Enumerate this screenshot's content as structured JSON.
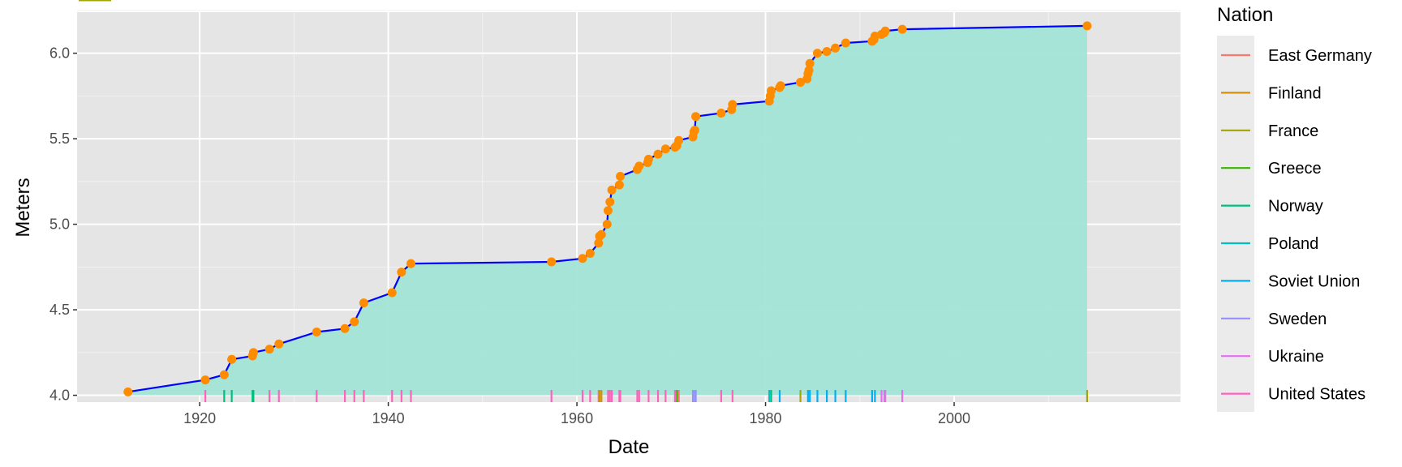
{
  "chart_data": {
    "type": "area",
    "xlabel": "Date",
    "ylabel": "Meters",
    "xlim": [
      1907,
      2024
    ],
    "ylim": [
      3.96,
      6.24
    ],
    "x_ticks": [
      1920,
      1940,
      1960,
      1980,
      2000
    ],
    "y_ticks": [
      "4.0",
      "4.5",
      "5.0",
      "5.5",
      "6.0"
    ],
    "grid": true,
    "line_color": "#0000ff",
    "point_color": "#ff8c00",
    "area_color": "#a3e4d7",
    "records": [
      [
        1912.4,
        4.02
      ],
      [
        1920.6,
        4.09
      ],
      [
        1922.6,
        4.12
      ],
      [
        1923.4,
        4.21
      ],
      [
        1925.6,
        4.23
      ],
      [
        1925.7,
        4.25
      ],
      [
        1927.4,
        4.27
      ],
      [
        1928.4,
        4.3
      ],
      [
        1932.4,
        4.37
      ],
      [
        1935.4,
        4.39
      ],
      [
        1936.4,
        4.43
      ],
      [
        1937.4,
        4.54
      ],
      [
        1940.4,
        4.6
      ],
      [
        1941.4,
        4.72
      ],
      [
        1942.4,
        4.77
      ],
      [
        1957.3,
        4.78
      ],
      [
        1960.6,
        4.8
      ],
      [
        1961.4,
        4.83
      ],
      [
        1962.3,
        4.89
      ],
      [
        1962.4,
        4.93
      ],
      [
        1962.6,
        4.94
      ],
      [
        1963.2,
        5.0
      ],
      [
        1963.3,
        5.08
      ],
      [
        1963.5,
        5.13
      ],
      [
        1963.7,
        5.2
      ],
      [
        1964.5,
        5.23
      ],
      [
        1964.6,
        5.28
      ],
      [
        1966.4,
        5.32
      ],
      [
        1966.6,
        5.34
      ],
      [
        1967.5,
        5.36
      ],
      [
        1967.6,
        5.38
      ],
      [
        1968.6,
        5.41
      ],
      [
        1969.4,
        5.44
      ],
      [
        1970.4,
        5.45
      ],
      [
        1970.6,
        5.46
      ],
      [
        1970.8,
        5.49
      ],
      [
        1972.3,
        5.51
      ],
      [
        1972.4,
        5.54
      ],
      [
        1972.5,
        5.55
      ],
      [
        1972.6,
        5.63
      ],
      [
        1975.3,
        5.65
      ],
      [
        1976.4,
        5.67
      ],
      [
        1976.5,
        5.7
      ],
      [
        1980.4,
        5.72
      ],
      [
        1980.5,
        5.75
      ],
      [
        1980.6,
        5.78
      ],
      [
        1981.5,
        5.8
      ],
      [
        1981.6,
        5.81
      ],
      [
        1983.7,
        5.83
      ],
      [
        1984.4,
        5.85
      ],
      [
        1984.5,
        5.88
      ],
      [
        1984.6,
        5.9
      ],
      [
        1984.7,
        5.94
      ],
      [
        1985.5,
        6.0
      ],
      [
        1986.5,
        6.01
      ],
      [
        1987.4,
        6.03
      ],
      [
        1988.5,
        6.06
      ],
      [
        1991.3,
        6.07
      ],
      [
        1991.5,
        6.08
      ],
      [
        1991.6,
        6.1
      ],
      [
        1992.3,
        6.11
      ],
      [
        1992.6,
        6.12
      ],
      [
        1992.7,
        6.13
      ],
      [
        1994.5,
        6.14
      ],
      [
        2014.1,
        6.16
      ]
    ],
    "rug_x": [
      [
        1920.6,
        "United States"
      ],
      [
        1922.6,
        "Norway"
      ],
      [
        1923.4,
        "Norway"
      ],
      [
        1925.7,
        "Norway"
      ],
      [
        1925.6,
        "Norway"
      ],
      [
        1927.4,
        "United States"
      ],
      [
        1928.4,
        "United States"
      ],
      [
        1932.4,
        "United States"
      ],
      [
        1935.4,
        "United States"
      ],
      [
        1936.4,
        "United States"
      ],
      [
        1937.4,
        "United States"
      ],
      [
        1940.4,
        "United States"
      ],
      [
        1941.4,
        "United States"
      ],
      [
        1942.4,
        "United States"
      ],
      [
        1957.3,
        "United States"
      ],
      [
        1960.6,
        "United States"
      ],
      [
        1961.4,
        "United States"
      ],
      [
        1962.3,
        "United States"
      ],
      [
        1962.4,
        "Finland"
      ],
      [
        1962.6,
        "Finland"
      ],
      [
        1963.3,
        "United States"
      ],
      [
        1963.5,
        "United States"
      ],
      [
        1963.7,
        "United States"
      ],
      [
        1964.5,
        "United States"
      ],
      [
        1964.6,
        "United States"
      ],
      [
        1966.4,
        "United States"
      ],
      [
        1966.6,
        "United States"
      ],
      [
        1967.6,
        "United States"
      ],
      [
        1968.6,
        "United States"
      ],
      [
        1969.4,
        "United States"
      ],
      [
        1970.4,
        "United States"
      ],
      [
        1970.6,
        "Greece"
      ],
      [
        1970.8,
        "East Germany"
      ],
      [
        1972.3,
        "Sweden"
      ],
      [
        1972.5,
        "Sweden"
      ],
      [
        1972.6,
        "Sweden"
      ],
      [
        1975.3,
        "United States"
      ],
      [
        1976.5,
        "United States"
      ],
      [
        1980.4,
        "Poland"
      ],
      [
        1980.6,
        "Norway"
      ],
      [
        1981.5,
        "Soviet Union"
      ],
      [
        1983.7,
        "France"
      ],
      [
        1984.5,
        "Soviet Union"
      ],
      [
        1984.7,
        "Soviet Union"
      ],
      [
        1985.5,
        "Soviet Union"
      ],
      [
        1986.5,
        "Soviet Union"
      ],
      [
        1987.4,
        "Soviet Union"
      ],
      [
        1988.5,
        "Soviet Union"
      ],
      [
        1991.3,
        "Soviet Union"
      ],
      [
        1991.6,
        "Soviet Union"
      ],
      [
        1992.3,
        "Ukraine"
      ],
      [
        1992.6,
        "Ukraine"
      ],
      [
        1992.7,
        "Ukraine"
      ],
      [
        1994.5,
        "Ukraine"
      ],
      [
        2014.1,
        "France"
      ]
    ],
    "rug_y": [
      [
        4.02,
        "United States"
      ],
      [
        4.09,
        "United States"
      ],
      [
        4.12,
        "Norway"
      ],
      [
        4.21,
        "Norway"
      ],
      [
        4.23,
        "Norway"
      ],
      [
        4.25,
        "Norway"
      ],
      [
        4.27,
        "United States"
      ],
      [
        4.3,
        "United States"
      ],
      [
        4.37,
        "United States"
      ],
      [
        4.39,
        "United States"
      ],
      [
        4.43,
        "United States"
      ],
      [
        4.54,
        "United States"
      ],
      [
        4.6,
        "United States"
      ],
      [
        4.72,
        "United States"
      ],
      [
        4.77,
        "United States"
      ],
      [
        4.78,
        "United States"
      ],
      [
        4.8,
        "United States"
      ],
      [
        4.83,
        "United States"
      ],
      [
        4.89,
        "United States"
      ],
      [
        4.93,
        "Finland"
      ],
      [
        4.94,
        "Finland"
      ],
      [
        5.0,
        "United States"
      ],
      [
        5.08,
        "United States"
      ],
      [
        5.13,
        "United States"
      ],
      [
        5.2,
        "United States"
      ],
      [
        5.23,
        "United States"
      ],
      [
        5.28,
        "United States"
      ],
      [
        5.32,
        "United States"
      ],
      [
        5.34,
        "United States"
      ],
      [
        5.36,
        "United States"
      ],
      [
        5.38,
        "United States"
      ],
      [
        5.41,
        "United States"
      ],
      [
        5.44,
        "United States"
      ],
      [
        5.45,
        "United States"
      ],
      [
        5.46,
        "East Germany"
      ],
      [
        5.49,
        "Greece"
      ],
      [
        5.51,
        "Sweden"
      ],
      [
        5.54,
        "Sweden"
      ],
      [
        5.55,
        "Sweden"
      ],
      [
        5.63,
        "United States"
      ],
      [
        5.65,
        "United States"
      ],
      [
        5.67,
        "United States"
      ],
      [
        5.7,
        "United States"
      ],
      [
        5.72,
        "Poland"
      ],
      [
        5.75,
        "Norway"
      ],
      [
        5.78,
        "France"
      ],
      [
        5.8,
        "France"
      ],
      [
        5.81,
        "Soviet Union"
      ],
      [
        5.83,
        "France"
      ],
      [
        5.85,
        "Soviet Union"
      ],
      [
        5.88,
        "Soviet Union"
      ],
      [
        5.9,
        "Soviet Union"
      ],
      [
        5.94,
        "Soviet Union"
      ],
      [
        6.0,
        "Soviet Union"
      ],
      [
        6.01,
        "Soviet Union"
      ],
      [
        6.03,
        "Soviet Union"
      ],
      [
        6.05,
        "Soviet Union"
      ],
      [
        6.06,
        "Soviet Union"
      ],
      [
        6.07,
        "Soviet Union"
      ],
      [
        6.08,
        "Soviet Union"
      ],
      [
        6.09,
        "Soviet Union"
      ],
      [
        6.1,
        "Soviet Union"
      ],
      [
        6.11,
        "Ukraine"
      ],
      [
        6.12,
        "Ukraine"
      ],
      [
        6.13,
        "Ukraine"
      ],
      [
        6.14,
        "Ukraine"
      ],
      [
        6.16,
        "France"
      ]
    ],
    "legend": {
      "title": "Nation",
      "position": "right",
      "entries": [
        {
          "label": "East Germany",
          "color": "#F8766D"
        },
        {
          "label": "Finland",
          "color": "#D89000"
        },
        {
          "label": "France",
          "color": "#A3A500"
        },
        {
          "label": "Greece",
          "color": "#39B600"
        },
        {
          "label": "Norway",
          "color": "#00BF7D"
        },
        {
          "label": "Poland",
          "color": "#00BFC4"
        },
        {
          "label": "Soviet Union",
          "color": "#00B0F6"
        },
        {
          "label": "Sweden",
          "color": "#9590FF"
        },
        {
          "label": "Ukraine",
          "color": "#E76BF3"
        },
        {
          "label": "United States",
          "color": "#FF62BC"
        }
      ]
    }
  }
}
